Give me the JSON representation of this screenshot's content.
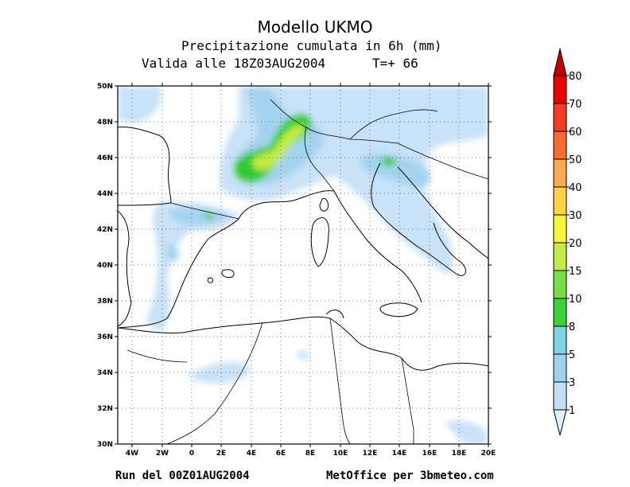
{
  "header": {
    "title": "Modello UKMO",
    "subtitle": "Precipitazione cumulata in 6h (mm)",
    "valid": "Valida alle 18Z03AUG2004",
    "t_label": "T=+ 66"
  },
  "footer": {
    "run": "Run del 00Z01AUG2004",
    "credit": "MetOffice per 3bmeteo.com"
  },
  "map": {
    "lat_labels": [
      "50N",
      "48N",
      "46N",
      "44N",
      "42N",
      "40N",
      "38N",
      "36N",
      "34N",
      "32N",
      "30N"
    ],
    "lon_labels": [
      "4W",
      "2W",
      "0",
      "2E",
      "4E",
      "6E",
      "8E",
      "10E",
      "12E",
      "14E",
      "16E",
      "18E",
      "20E"
    ],
    "lat_range": [
      30,
      50
    ],
    "lon_range": [
      -5,
      20
    ]
  },
  "legend": {
    "levels": [
      "1",
      "3",
      "5",
      "8",
      "10",
      "15",
      "20",
      "30",
      "40",
      "50",
      "60",
      "70",
      "80"
    ],
    "colors": [
      "#e3eefb",
      "#c5def7",
      "#9fd1ee",
      "#7ed3e6",
      "#3cd23a",
      "#78e046",
      "#c3ec46",
      "#f6f63c",
      "#fcd446",
      "#fbaa50",
      "#f86c32",
      "#f43c22",
      "#e80000",
      "#c00000"
    ]
  },
  "colors": {
    "green": "#33cc33",
    "yellowgreen": "#c2eb45",
    "lightblue": "#c8e2f8",
    "midblue": "#a4d3ef"
  }
}
